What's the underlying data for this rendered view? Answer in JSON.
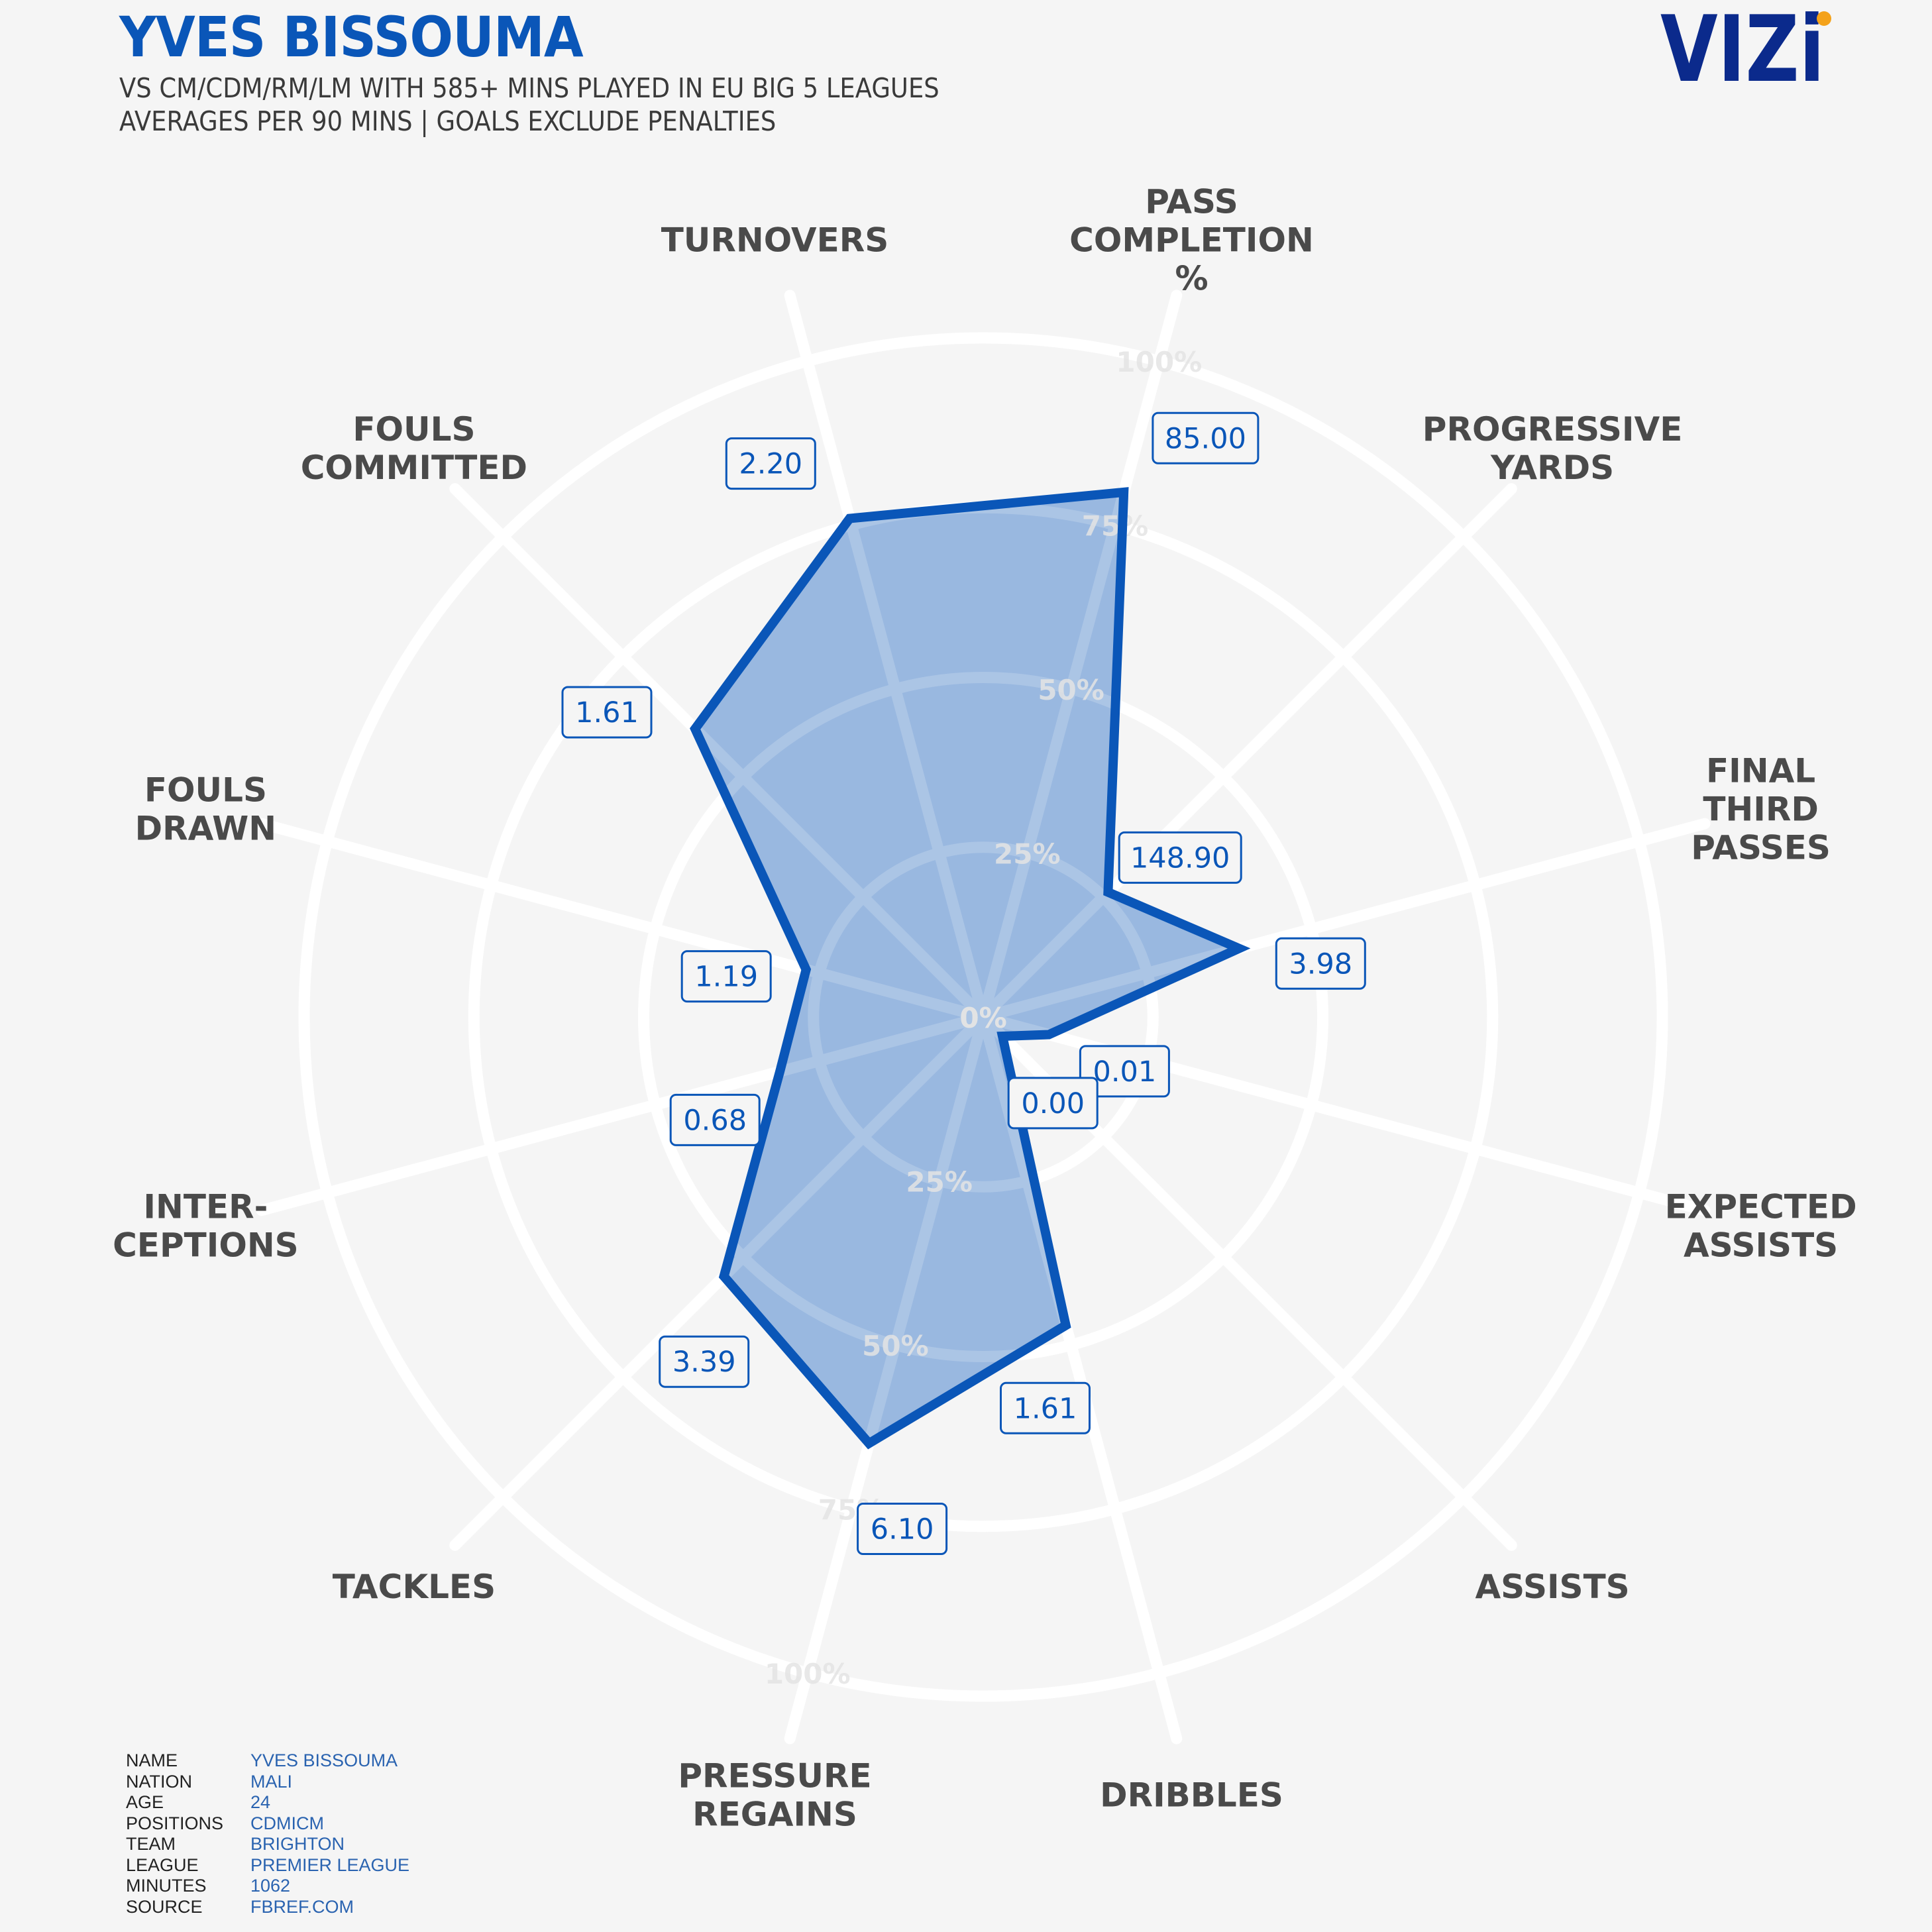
{
  "header": {
    "title": "YVES BISSOUMA",
    "subtitle_line1": "VS CM/CDM/RM/LM WITH 585+ MINS PLAYED IN EU BIG 5 LEAGUES",
    "subtitle_line2": "AVERAGES PER 90 MINS | GOALS EXCLUDE PENALTIES"
  },
  "logo": {
    "text": "VIZi",
    "color": "#0b2a8c",
    "dot_color": "#f4a21a"
  },
  "colors": {
    "accent": "#0a56b8",
    "fill": "#93b4de",
    "grid": "#ffffff",
    "ring_label": "#e4e4e4",
    "axis_label": "#4a4a4a"
  },
  "chart_data": {
    "type": "radar",
    "scale_max": 100,
    "ring_labels": [
      "0%",
      "25%",
      "50%",
      "75%",
      "100%"
    ],
    "axes": [
      {
        "label": [
          "PASS",
          "COMPLETION",
          "%"
        ],
        "value_label": "85.00",
        "percentile": 80
      },
      {
        "label": [
          "PROGRESSIVE",
          "YARDS"
        ],
        "value_label": "148.90",
        "percentile": 26
      },
      {
        "label": [
          "FINAL",
          "THIRD",
          "PASSES"
        ],
        "value_label": "3.98",
        "percentile": 39
      },
      {
        "label": [
          "EXPECTED",
          "ASSISTS"
        ],
        "value_label": "0.01",
        "percentile": 10
      },
      {
        "label": [
          "ASSISTS"
        ],
        "value_label": "0.00",
        "percentile": 4
      },
      {
        "label": [
          "DRIBBLES"
        ],
        "value_label": "1.61",
        "percentile": 47
      },
      {
        "label": [
          "PRESSURE",
          "REGAINS"
        ],
        "value_label": "6.10",
        "percentile": 65
      },
      {
        "label": [
          "TACKLES"
        ],
        "value_label": "3.39",
        "percentile": 54
      },
      {
        "label": [
          "INTER-",
          "CEPTIONS"
        ],
        "value_label": "0.68",
        "percentile": 31
      },
      {
        "label": [
          "FOULS",
          "DRAWN"
        ],
        "value_label": "1.19",
        "percentile": 27
      },
      {
        "label": [
          "FOULS",
          "COMMITTED"
        ],
        "value_label": "1.61",
        "percentile": 60
      },
      {
        "label": [
          "TURNOVERS"
        ],
        "value_label": "2.20",
        "percentile": 76
      }
    ]
  },
  "player_info": [
    {
      "label": "NAME",
      "value": "YVES BISSOUMA"
    },
    {
      "label": "NATION",
      "value": "MALI"
    },
    {
      "label": "AGE",
      "value": "24"
    },
    {
      "label": "POSITIONS",
      "value": "CDMICM"
    },
    {
      "label": "TEAM",
      "value": "BRIGHTON"
    },
    {
      "label": "LEAGUE",
      "value": "PREMIER LEAGUE"
    },
    {
      "label": "MINUTES",
      "value": "1062"
    },
    {
      "label": "SOURCE",
      "value": "FBREF.COM"
    }
  ]
}
